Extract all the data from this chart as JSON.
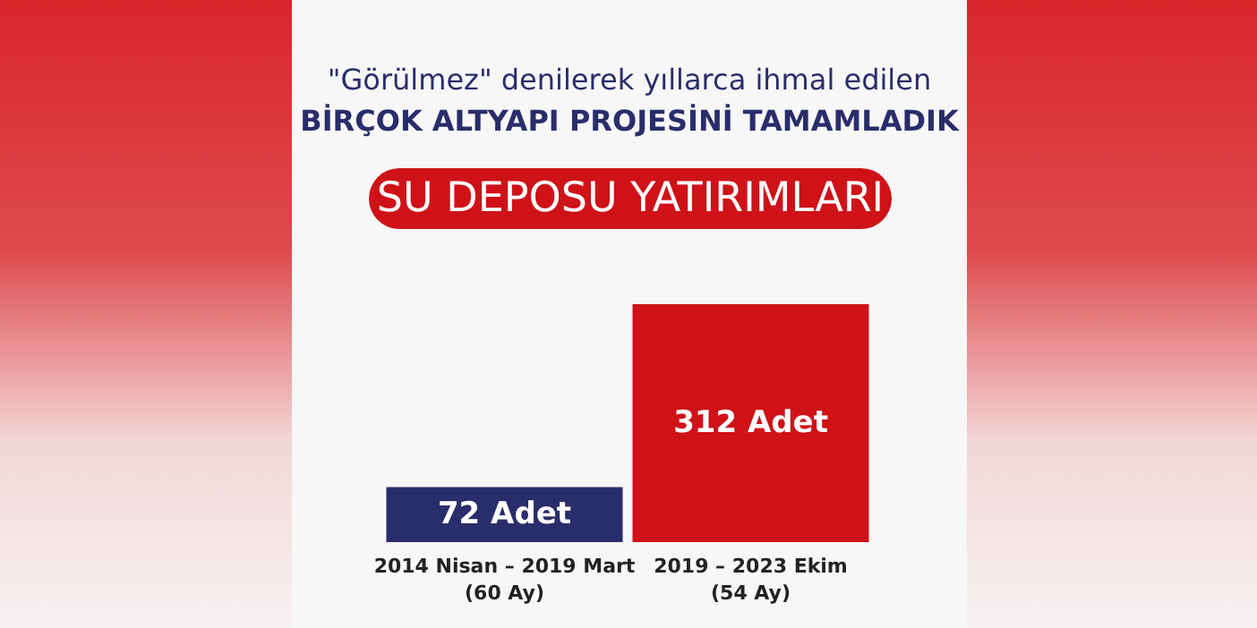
{
  "chart_data": {
    "type": "bar",
    "title": "\"Görülmez\" denilerek yıllarca ihmal edilen",
    "subtitle": "BİRÇOK ALTYAPI PROJESİNİ TAMAMLADIK",
    "annotations": [
      "SU DEPOSU YATIRIMLARI"
    ],
    "categories": [
      "2014 Nisan – 2019 Mart\n(60 Ay)",
      "2019 – 2023 Ekim\n(54 Ay)"
    ],
    "values": [
      72,
      312
    ],
    "colors": [
      "#2a2d6b",
      "#cf1218"
    ],
    "value_labels": [
      "72 Adet",
      "312 Adet"
    ]
  }
}
